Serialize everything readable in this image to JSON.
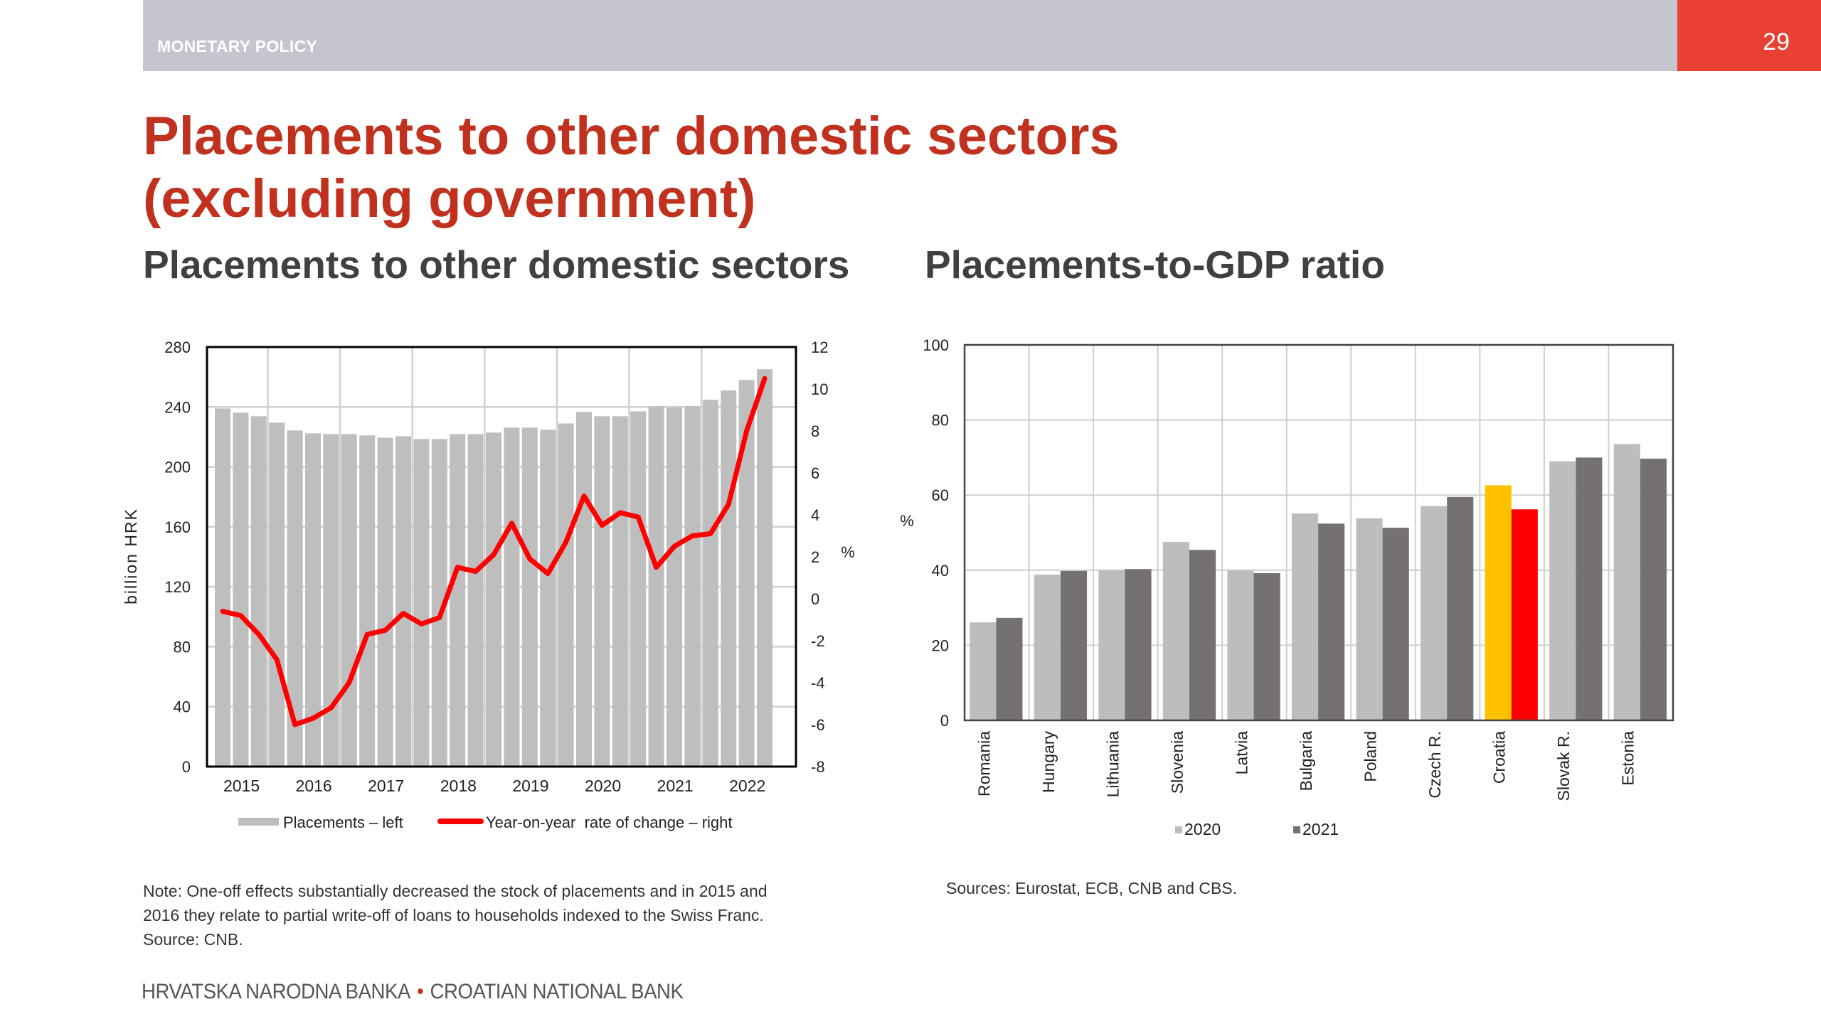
{
  "header": {
    "section": "MONETARY POLICY",
    "page_number": "29",
    "bar_color": "#c4c5ce",
    "page_color": "#e84134"
  },
  "title": {
    "line1": "Placements to other domestic sectors",
    "line2": "(excluding government)"
  },
  "subtitles": {
    "left": "Placements to other domestic sectors",
    "right": "Placements-to-GDP ratio"
  },
  "notes": {
    "left_line1": "Note: One-off effects substantially decreased the stock of placements and in 2015 and",
    "left_line2": "2016 they relate to partial write-off of loans to households indexed to the Swiss Franc.",
    "left_line3": "Source: CNB.",
    "right": "Sources: Eurostat, ECB, CNB and CBS."
  },
  "footer": {
    "left": "HRVATSKA NARODNA BANKA",
    "separator": "•",
    "right": "CROATIAN NATIONAL BANK"
  },
  "chart_data": [
    {
      "type": "bar",
      "title": "Placements to other domestic sectors",
      "ylabel": "billion HRK",
      "ylabel_right": "%",
      "ylim": [
        0,
        280
      ],
      "yticks": [
        0,
        40,
        80,
        120,
        160,
        200,
        240,
        280
      ],
      "ylim_right": [
        -8,
        12
      ],
      "yticks_right": [
        -8,
        -6,
        -4,
        -2,
        0,
        2,
        4,
        6,
        8,
        10,
        12
      ],
      "xtick_labels": [
        "2015",
        "2016",
        "2017",
        "2018",
        "2019",
        "2020",
        "2021",
        "2022"
      ],
      "grid": true,
      "legend_position": "bottom",
      "series": [
        {
          "name": "Placements – left",
          "type": "bar",
          "axis": "left",
          "color": "#bebebe",
          "values": [
            239.0,
            236.2,
            233.8,
            229.5,
            224.3,
            222.4,
            221.9,
            221.9,
            221.0,
            219.5,
            220.5,
            218.6,
            218.6,
            221.9,
            221.9,
            222.9,
            226.2,
            226.2,
            224.8,
            229.0,
            236.7,
            233.8,
            233.8,
            237.1,
            240.4,
            239.5,
            240.4,
            244.8,
            251.0,
            258.0,
            265.2
          ]
        },
        {
          "name": "Year-on-year  rate of change – right",
          "type": "line",
          "axis": "right",
          "color": "#ff0000",
          "values": [
            -0.6,
            -0.8,
            -1.7,
            -2.9,
            -6.0,
            -5.7,
            -5.2,
            -4.0,
            -1.7,
            -1.5,
            -0.7,
            -1.2,
            -0.9,
            1.5,
            1.3,
            2.1,
            3.6,
            1.9,
            1.2,
            2.7,
            4.9,
            3.5,
            4.1,
            3.9,
            1.5,
            2.5,
            3.0,
            3.1,
            4.5,
            8.0,
            10.5
          ]
        }
      ]
    },
    {
      "type": "bar",
      "title": "Placements-to-GDP ratio",
      "ylabel": "%",
      "ylim": [
        0,
        100
      ],
      "yticks": [
        0,
        20,
        40,
        60,
        80,
        100
      ],
      "grid": true,
      "legend_position": "bottom",
      "categories": [
        "Romania",
        "Hungary",
        "Lithuania",
        "Slovenia",
        "Latvia",
        "Bulgaria",
        "Poland",
        "Czech R.",
        "Croatia",
        "Slovak R.",
        "Estonia"
      ],
      "highlight": {
        "category": "Croatia",
        "colors": {
          "2020": "#ffc000",
          "2021": "#ff0000"
        }
      },
      "series": [
        {
          "name": "2020",
          "color": "#bdbdbd",
          "values": [
            26.1,
            38.8,
            39.9,
            47.5,
            39.9,
            55.1,
            53.8,
            57.1,
            62.6,
            69.0,
            73.6
          ]
        },
        {
          "name": "2021",
          "color": "#767171",
          "values": [
            27.3,
            39.8,
            40.3,
            45.4,
            39.2,
            52.4,
            51.3,
            59.5,
            56.2,
            70.0,
            69.7
          ]
        }
      ]
    }
  ]
}
